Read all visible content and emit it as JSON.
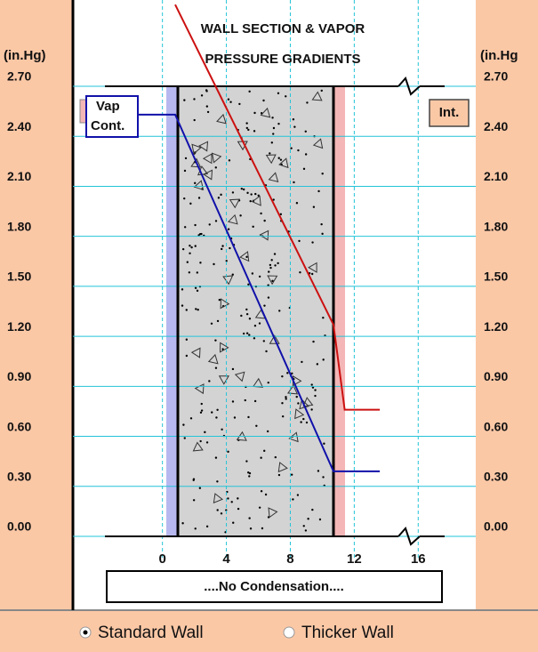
{
  "chart_data": {
    "type": "line",
    "title_lines": [
      "WALL SECTION & VAPOR",
      "PRESSURE GRADIENTS"
    ],
    "y_unit_left": "(in.Hg)",
    "y_unit_right": "(in.Hg",
    "series": [
      {
        "color": "#cc1111",
        "x": [
          0.8,
          10.7,
          11.4,
          13.6
        ],
        "values": [
          3.19,
          1.27,
          0.76,
          0.76
        ]
      },
      {
        "color": "#1111aa",
        "x": [
          -1.5,
          0.8,
          10.7,
          13.6
        ],
        "values": [
          2.53,
          2.53,
          0.39,
          0.39
        ]
      }
    ],
    "xlim": [
      -5.6,
      19.6
    ],
    "ylim": [
      0,
      2.7
    ],
    "xticks": [
      0,
      4,
      8,
      12,
      16
    ],
    "yticks": [
      {
        "value": 0,
        "label": "0.00"
      },
      {
        "value": 0.3,
        "label": "0.30"
      },
      {
        "value": 0.6,
        "label": "0.60"
      },
      {
        "value": 0.9,
        "label": "0.90"
      },
      {
        "value": 1.2,
        "label": "1.20"
      },
      {
        "value": 1.5,
        "label": "1.50"
      },
      {
        "value": 1.8,
        "label": "1.80"
      },
      {
        "value": 2.1,
        "label": "2.10"
      },
      {
        "value": 2.4,
        "label": "2.40"
      },
      {
        "value": 2.7,
        "label": "2.70"
      }
    ],
    "grid": true,
    "labels": {
      "vapor_retarder": "Vap",
      "vapor_retarder_2": "Cont.",
      "interior": "Int.",
      "status": "....No Condensation...."
    },
    "options": [
      "Standard Wall",
      "Thicker Wall"
    ],
    "selected_option": 0
  }
}
